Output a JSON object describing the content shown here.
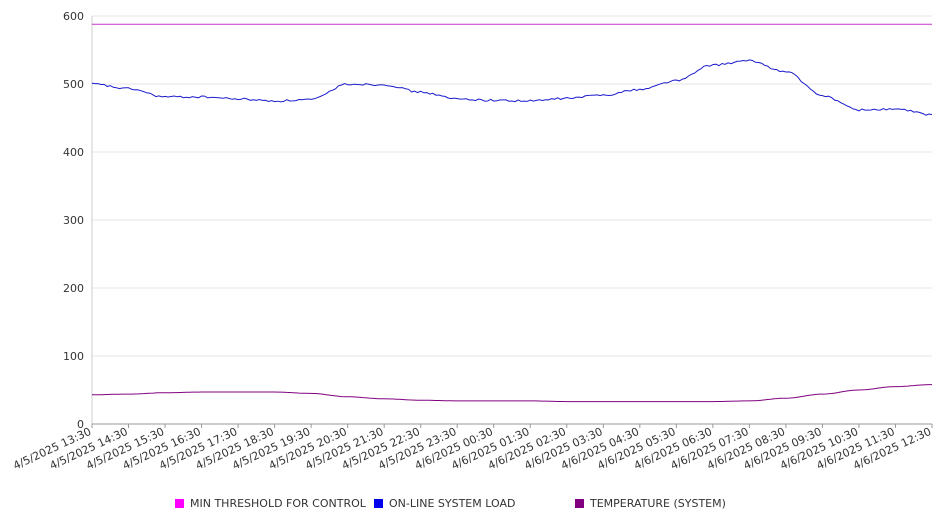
{
  "chart_data": {
    "type": "line",
    "title": "",
    "xlabel": "",
    "ylabel": "",
    "ylim": [
      0,
      600
    ],
    "yticks": [
      0,
      100,
      200,
      300,
      400,
      500,
      600
    ],
    "grid": "horizontal",
    "legend_position": "bottom",
    "x": [
      "4/5/2025 13:30",
      "4/5/2025 14:30",
      "4/5/2025 15:30",
      "4/5/2025 16:30",
      "4/5/2025 17:30",
      "4/5/2025 18:30",
      "4/5/2025 19:30",
      "4/5/2025 20:30",
      "4/5/2025 21:30",
      "4/5/2025 22:30",
      "4/5/2025 23:30",
      "4/6/2025 00:30",
      "4/6/2025 01:30",
      "4/6/2025 02:30",
      "4/6/2025 03:30",
      "4/6/2025 04:30",
      "4/6/2025 05:30",
      "4/6/2025 06:30",
      "4/6/2025 07:30",
      "4/6/2025 08:30",
      "4/6/2025 09:30",
      "4/6/2025 10:30",
      "4/6/2025 11:30",
      "4/6/2025 12:30"
    ],
    "series": [
      {
        "name": "MIN THRESHOLD FOR CONTROL",
        "color": "#cc33cc",
        "values": [
          588,
          588,
          588,
          588,
          588,
          588,
          588,
          588,
          588,
          588,
          588,
          588,
          588,
          588,
          588,
          588,
          588,
          588,
          588,
          588,
          588,
          588,
          588,
          588
        ]
      },
      {
        "name": "ON-LINE SYSTEM LOAD",
        "color": "#1a1acc",
        "values": [
          500,
          493,
          481,
          481,
          478,
          475,
          477,
          500,
          499,
          488,
          478,
          476,
          475,
          479,
          484,
          492,
          505,
          528,
          534,
          518,
          483,
          462,
          463,
          455
        ]
      },
      {
        "name": "TEMPERATURE (SYSTEM)",
        "color": "#800080",
        "values": [
          43,
          44,
          46,
          47,
          47,
          47,
          45,
          40,
          37,
          35,
          34,
          34,
          34,
          33,
          33,
          33,
          33,
          33,
          34,
          38,
          44,
          50,
          55,
          58
        ]
      }
    ]
  }
}
